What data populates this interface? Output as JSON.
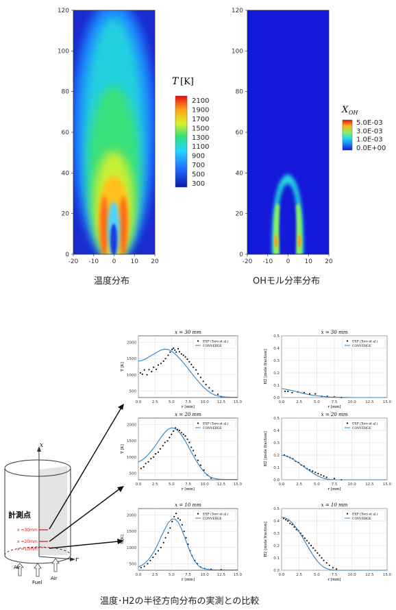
{
  "captions": {
    "temperature": "温度分布",
    "oh": "OHモル分率分布",
    "comparison": "温度･H2の半径方向分布の実測との比較"
  },
  "contour_axes": {
    "x_ticks": [
      "-20",
      "-10",
      "0",
      "10",
      "20"
    ],
    "y_ticks": [
      "0",
      "20",
      "40",
      "60",
      "80",
      "100",
      "120"
    ]
  },
  "temp_colorbar": {
    "title_symbol": "T",
    "title_unit": "[K]",
    "ticks": [
      "2100",
      "1900",
      "1700",
      "1500",
      "1300",
      "1100",
      "900",
      "700",
      "500",
      "300"
    ]
  },
  "oh_colorbar": {
    "title_symbol": "X",
    "title_sub": "OH",
    "ticks": [
      "5.0E-03",
      "3.0E-03",
      "1.0E-03",
      "0.0E+00"
    ]
  },
  "schematic": {
    "label_measure": "計測点",
    "x_axis": "x",
    "r_axis": "r",
    "levels": [
      "x =30mm",
      "x =20mm",
      "x =10mm"
    ],
    "air_left": "Air",
    "air_right": "Air",
    "fuel": "Fuel"
  },
  "legend": {
    "exp": "EXP (Toro et al.)",
    "converge": "CONVERGE"
  },
  "colors": {
    "line": "#2f7fc1",
    "points": "#111111",
    "marker_red": "#e01010",
    "grid": "#d8d8d8"
  },
  "chart_data": [
    {
      "type": "heatmap",
      "caption": "温度分布",
      "xlim": [
        -20,
        20
      ],
      "ylim": [
        0,
        120
      ],
      "colorbar": {
        "title": "T [K]",
        "range": [
          300,
          2100
        ],
        "ticks": [
          2100,
          1900,
          1700,
          1500,
          1300,
          1100,
          900,
          700,
          500,
          300
        ]
      }
    },
    {
      "type": "heatmap",
      "caption": "OHモル分率分布",
      "xlim": [
        -20,
        20
      ],
      "ylim": [
        0,
        120
      ],
      "colorbar": {
        "title": "X_OH",
        "range": [
          0,
          0.005
        ],
        "ticks": [
          "5.0E-03",
          "3.0E-03",
          "1.0E-03",
          "0.0E+00"
        ]
      }
    },
    {
      "type": "scatter",
      "id": "T30",
      "title": "x = 30 mm",
      "xlabel": "r [mm]",
      "ylabel": "T [K]",
      "xlim": [
        0,
        15
      ],
      "ylim": [
        300,
        2200
      ],
      "xticks": [
        "0.0",
        "2.5",
        "5.0",
        "7.5",
        "10.0",
        "12.5",
        "15.0"
      ],
      "yticks": [
        500,
        1000,
        1500,
        2000
      ],
      "series": [
        {
          "name": "EXP (Toro et al.)",
          "kind": "points",
          "x": [
            0.3,
            0.6,
            0.9,
            1.3,
            1.6,
            2.0,
            2.3,
            2.7,
            3.0,
            3.4,
            3.8,
            4.1,
            4.5,
            4.8,
            5.1,
            5.3,
            5.5,
            5.7,
            6.0,
            6.2,
            6.5,
            6.8,
            7.1,
            7.4,
            7.7,
            8.0,
            8.3,
            8.7,
            9.0,
            9.4,
            9.8,
            10.2,
            10.7,
            11.2,
            12.0,
            12.5
          ],
          "y": [
            1060,
            1020,
            1150,
            1000,
            1160,
            1100,
            1230,
            1170,
            1300,
            1350,
            1420,
            1500,
            1600,
            1700,
            1780,
            1820,
            1760,
            1700,
            1800,
            1710,
            1640,
            1600,
            1550,
            1480,
            1400,
            1320,
            1230,
            1150,
            1030,
            920,
            800,
            700,
            600,
            500,
            400,
            330
          ]
        },
        {
          "name": "CONVERGE",
          "kind": "line",
          "x": [
            0,
            0.5,
            1,
            1.5,
            2,
            2.5,
            3,
            3.5,
            4,
            4.5,
            5,
            5.5,
            6,
            6.5,
            7,
            7.5,
            8,
            8.5,
            9,
            9.5,
            10,
            10.5,
            11,
            11.5,
            12,
            12.5,
            13,
            13.5,
            14,
            14.5,
            15
          ],
          "y": [
            1420,
            1440,
            1480,
            1540,
            1600,
            1660,
            1720,
            1770,
            1790,
            1780,
            1730,
            1650,
            1550,
            1440,
            1320,
            1190,
            1060,
            930,
            810,
            690,
            590,
            500,
            430,
            380,
            350,
            330,
            320,
            315,
            310,
            310,
            310
          ]
        }
      ]
    },
    {
      "type": "scatter",
      "id": "H30",
      "title": "x = 30 mm",
      "xlabel": "r [mm]",
      "ylabel": "H2 [mole fraction]",
      "xlim": [
        0,
        15
      ],
      "ylim": [
        0,
        0.5
      ],
      "xticks": [
        "0.0",
        "2.5",
        "5.0",
        "7.5",
        "10.0",
        "12.5",
        "15.0"
      ],
      "yticks": [
        "0.0",
        "0.1",
        "0.2",
        "0.3",
        "0.4",
        "0.5"
      ],
      "series": [
        {
          "name": "EXP (Toro et al.)",
          "kind": "points",
          "x": [
            0.5,
            0.9,
            1.5,
            2.3,
            3.2,
            4.0,
            4.8,
            5.7,
            6.5,
            7.5,
            8.5
          ],
          "y": [
            0.05,
            0.05,
            0.04,
            0.045,
            0.04,
            0.03,
            0.03,
            0.01,
            0.01,
            0.005,
            0.0
          ]
        },
        {
          "name": "CONVERGE",
          "kind": "line",
          "x": [
            0,
            1,
            2,
            3,
            4,
            5,
            6,
            7,
            8,
            9,
            10,
            11,
            12,
            13,
            14,
            15
          ],
          "y": [
            0.072,
            0.062,
            0.05,
            0.035,
            0.023,
            0.014,
            0.008,
            0.004,
            0.002,
            0.001,
            0,
            0,
            0,
            0,
            0,
            0
          ]
        }
      ]
    },
    {
      "type": "scatter",
      "id": "T20",
      "title": "x = 20 mm",
      "xlabel": "r [mm]",
      "ylabel": "T [K]",
      "xlim": [
        0,
        15
      ],
      "ylim": [
        300,
        2200
      ],
      "xticks": [
        "0.0",
        "2.5",
        "5.0",
        "7.5",
        "10.0",
        "12.5",
        "15.0"
      ],
      "yticks": [
        500,
        1000,
        1500,
        2000
      ],
      "series": [
        {
          "name": "EXP (Toro et al.)",
          "kind": "points",
          "x": [
            0.4,
            0.8,
            1.1,
            1.5,
            1.9,
            2.3,
            2.6,
            3.0,
            3.3,
            3.7,
            4.0,
            4.4,
            4.7,
            5.0,
            5.3,
            5.6,
            5.9,
            6.2,
            6.5,
            6.8,
            7.1,
            7.4,
            7.7,
            8.0,
            8.3,
            8.6,
            9.0,
            9.4,
            9.9,
            10.4,
            11.0
          ],
          "y": [
            650,
            700,
            800,
            850,
            950,
            1000,
            1100,
            1150,
            1250,
            1350,
            1450,
            1500,
            1600,
            1700,
            1800,
            1900,
            1850,
            1820,
            1750,
            1700,
            1650,
            1550,
            1450,
            1300,
            1200,
            1050,
            900,
            750,
            600,
            450,
            350
          ]
        },
        {
          "name": "CONVERGE",
          "kind": "line",
          "x": [
            0,
            0.5,
            1,
            1.5,
            2,
            2.5,
            3,
            3.5,
            4,
            4.5,
            5,
            5.5,
            6,
            6.5,
            7,
            7.5,
            8,
            8.5,
            9,
            9.5,
            10,
            10.5,
            11,
            11.5,
            12,
            12.5,
            13,
            13.5,
            14,
            14.5,
            15
          ],
          "y": [
            850,
            900,
            980,
            1080,
            1200,
            1330,
            1480,
            1630,
            1760,
            1860,
            1900,
            1880,
            1800,
            1680,
            1520,
            1340,
            1150,
            970,
            800,
            650,
            520,
            430,
            370,
            340,
            320,
            315,
            310,
            310,
            310,
            310,
            310
          ]
        }
      ]
    },
    {
      "type": "scatter",
      "id": "H20",
      "title": "x = 20 mm",
      "xlabel": "r [mm]",
      "ylabel": "H2 [mole fraction]",
      "xlim": [
        0,
        15
      ],
      "ylim": [
        0,
        0.5
      ],
      "xticks": [
        "0.0",
        "2.5",
        "5.0",
        "7.5",
        "10.0",
        "12.5",
        "15.0"
      ],
      "yticks": [
        "0.0",
        "0.1",
        "0.2",
        "0.3",
        "0.4",
        "0.5"
      ],
      "series": [
        {
          "name": "EXP (Toro et al.)",
          "kind": "points",
          "x": [
            0.4,
            0.8,
            1.2,
            1.6,
            2.0,
            2.4,
            2.8,
            3.2,
            3.6,
            4.0,
            4.4,
            4.8,
            5.2,
            5.6,
            6.0,
            6.4,
            7.5,
            8.5
          ],
          "y": [
            0.2,
            0.19,
            0.18,
            0.17,
            0.15,
            0.14,
            0.12,
            0.11,
            0.09,
            0.08,
            0.07,
            0.06,
            0.05,
            0.04,
            0.03,
            0.02,
            0.01,
            0.0
          ]
        },
        {
          "name": "CONVERGE",
          "kind": "line",
          "x": [
            0,
            0.5,
            1,
            1.5,
            2,
            2.5,
            3,
            3.5,
            4,
            4.5,
            5,
            5.5,
            6,
            6.5,
            7,
            7.5,
            8,
            9,
            10,
            11,
            12,
            13,
            14,
            15
          ],
          "y": [
            0.2,
            0.195,
            0.185,
            0.17,
            0.153,
            0.134,
            0.113,
            0.092,
            0.072,
            0.053,
            0.036,
            0.022,
            0.012,
            0.005,
            0.002,
            0,
            0,
            0,
            0,
            0,
            0,
            0,
            0,
            0
          ]
        }
      ]
    },
    {
      "type": "scatter",
      "id": "T10",
      "title": "x = 10 mm",
      "xlabel": "r [mm]",
      "ylabel": "T [K]",
      "xlim": [
        0,
        15
      ],
      "ylim": [
        300,
        2200
      ],
      "xticks": [
        "0.0",
        "2.5",
        "5.0",
        "7.5",
        "10.0",
        "12.5",
        "15.0"
      ],
      "yticks": [
        500,
        1000,
        1500,
        2000
      ],
      "series": [
        {
          "name": "EXP (Toro et al.)",
          "kind": "points",
          "x": [
            0.4,
            0.9,
            1.4,
            1.8,
            2.2,
            2.6,
            3.0,
            3.4,
            3.8,
            4.1,
            4.5,
            4.8,
            5.1,
            5.4,
            5.7,
            6.0,
            6.3,
            6.6,
            6.9,
            7.2,
            7.5,
            7.8,
            8.1,
            8.5,
            8.9,
            9.4,
            10.0,
            11.0,
            12.5
          ],
          "y": [
            380,
            420,
            500,
            600,
            700,
            800,
            900,
            1000,
            1150,
            1300,
            1450,
            1600,
            1800,
            1950,
            2050,
            1900,
            1850,
            1700,
            1500,
            1300,
            1100,
            900,
            750,
            600,
            500,
            400,
            350,
            330,
            320
          ]
        },
        {
          "name": "CONVERGE",
          "kind": "line",
          "x": [
            0,
            0.5,
            1,
            1.5,
            2,
            2.5,
            3,
            3.5,
            4,
            4.5,
            5,
            5.5,
            6,
            6.5,
            7,
            7.5,
            8,
            8.5,
            9,
            9.5,
            10,
            11,
            12,
            13,
            14,
            15
          ],
          "y": [
            400,
            450,
            520,
            620,
            760,
            930,
            1130,
            1360,
            1570,
            1760,
            1870,
            1880,
            1780,
            1580,
            1310,
            1030,
            780,
            580,
            450,
            380,
            340,
            315,
            310,
            310,
            310,
            310
          ]
        }
      ]
    },
    {
      "type": "scatter",
      "id": "H10",
      "title": "x = 10 mm",
      "xlabel": "r [mm]",
      "ylabel": "H2 [mole fraction]",
      "xlim": [
        0,
        15
      ],
      "ylim": [
        0,
        0.5
      ],
      "xticks": [
        "0.0",
        "2.5",
        "5.0",
        "7.5",
        "10.0",
        "12.5",
        "15.0"
      ],
      "yticks": [
        "0.0",
        "0.1",
        "0.2",
        "0.3",
        "0.4",
        "0.5"
      ],
      "series": [
        {
          "name": "EXP (Toro et al.)",
          "kind": "points",
          "x": [
            0.3,
            0.6,
            0.9,
            1.2,
            1.5,
            1.8,
            2.1,
            2.4,
            2.7,
            3.0,
            3.3,
            3.6,
            3.9,
            4.2,
            4.5,
            4.8,
            5.1,
            5.4,
            5.7,
            6.0,
            6.4,
            6.8,
            7.3,
            7.8
          ],
          "y": [
            0.42,
            0.41,
            0.4,
            0.38,
            0.37,
            0.35,
            0.33,
            0.32,
            0.3,
            0.28,
            0.26,
            0.24,
            0.22,
            0.2,
            0.18,
            0.16,
            0.14,
            0.12,
            0.1,
            0.08,
            0.06,
            0.04,
            0.02,
            0.01
          ]
        },
        {
          "name": "CONVERGE",
          "kind": "line",
          "x": [
            0,
            0.5,
            1,
            1.5,
            2,
            2.5,
            3,
            3.5,
            4,
            4.5,
            5,
            5.5,
            6,
            6.5,
            7,
            7.5,
            8,
            9,
            10,
            11,
            12,
            13,
            14,
            15
          ],
          "y": [
            0.43,
            0.425,
            0.41,
            0.385,
            0.35,
            0.31,
            0.265,
            0.215,
            0.165,
            0.12,
            0.08,
            0.048,
            0.025,
            0.011,
            0.004,
            0.001,
            0,
            0,
            0,
            0,
            0,
            0,
            0,
            0
          ]
        }
      ]
    }
  ]
}
